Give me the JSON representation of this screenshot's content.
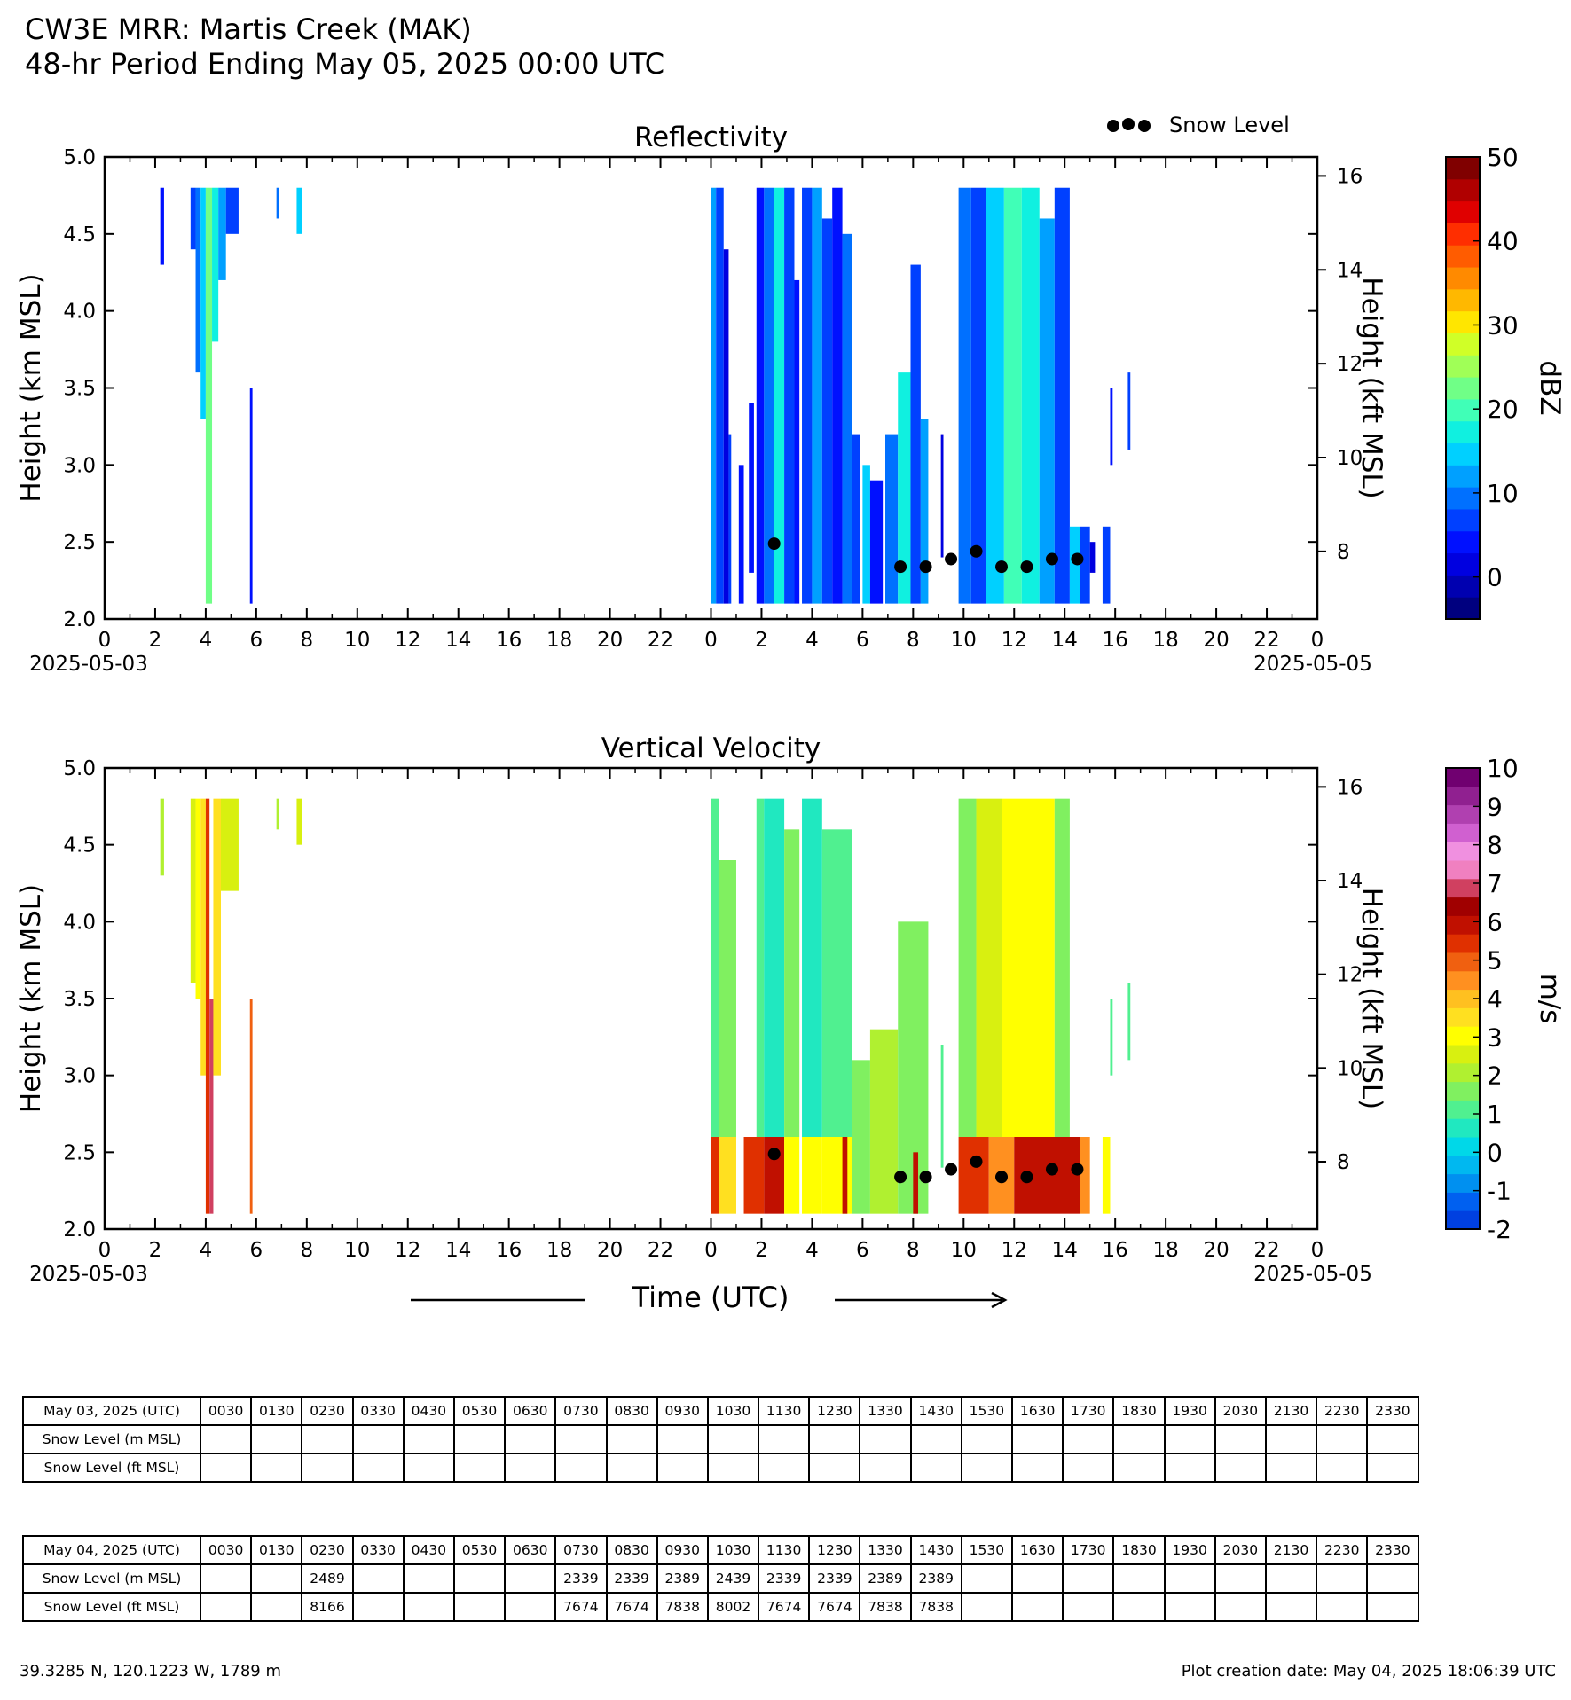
{
  "header": {
    "title_line1": "CW3E MRR: Martis Creek (MAK)",
    "title_line2": "48-hr Period Ending May 05, 2025 00:00 UTC"
  },
  "legend": {
    "snow_level_label": "Snow Level"
  },
  "xlabel": "Time (UTC)",
  "chart_data": [
    {
      "type": "heatmap",
      "title": "Reflectivity",
      "ylabel": "Height (km MSL)",
      "ylabel_right": "Height (kft MSL)",
      "ylim": [
        2.0,
        5.0
      ],
      "yticks": [
        "2.0",
        "2.5",
        "3.0",
        "3.5",
        "4.0",
        "4.5",
        "5.0"
      ],
      "ylim_right_kft": [
        6.56,
        16.4
      ],
      "yticks_right": [
        "8",
        "10",
        "12",
        "14",
        "16"
      ],
      "xlim_hours": [
        0,
        48
      ],
      "xticks": [
        "0",
        "2",
        "4",
        "6",
        "8",
        "10",
        "12",
        "14",
        "16",
        "18",
        "20",
        "22",
        "0",
        "2",
        "4",
        "6",
        "8",
        "10",
        "12",
        "14",
        "16",
        "18",
        "20",
        "22",
        "0"
      ],
      "xdates": {
        "start": "2025-05-03",
        "end": "2025-05-05"
      },
      "colorbar": {
        "label": "dBZ",
        "range": [
          -5,
          50
        ],
        "ticks": [
          "0",
          "10",
          "20",
          "30",
          "40",
          "50"
        ],
        "colors": [
          "#00007f",
          "#0000b0",
          "#0000e0",
          "#0010ff",
          "#0040ff",
          "#0070ff",
          "#00a0ff",
          "#00d0ff",
          "#10f0e0",
          "#40ffb7",
          "#70ff87",
          "#a0ff57",
          "#d0ff27",
          "#ffe600",
          "#ffb800",
          "#ff8a00",
          "#ff5c00",
          "#ff2e00",
          "#e00000",
          "#b00000",
          "#800000"
        ]
      },
      "snow_level_points": [
        {
          "x": 26.5,
          "y": 2.489
        },
        {
          "x": 31.5,
          "y": 2.339
        },
        {
          "x": 32.5,
          "y": 2.339
        },
        {
          "x": 33.5,
          "y": 2.389
        },
        {
          "x": 34.5,
          "y": 2.439
        },
        {
          "x": 35.5,
          "y": 2.339
        },
        {
          "x": 36.5,
          "y": 2.339
        },
        {
          "x": 37.5,
          "y": 2.389
        },
        {
          "x": 38.5,
          "y": 2.389
        }
      ],
      "echo_columns": [
        {
          "x0": 2.2,
          "x1": 2.35,
          "ybot": 4.3,
          "ytop": 4.8,
          "v": 4
        },
        {
          "x0": 3.4,
          "x1": 3.6,
          "ybot": 4.4,
          "ytop": 4.8,
          "v": 6
        },
        {
          "x0": 3.6,
          "x1": 3.8,
          "ybot": 3.6,
          "ytop": 4.8,
          "v": 10
        },
        {
          "x0": 3.8,
          "x1": 4.0,
          "ybot": 3.3,
          "ytop": 4.8,
          "v": 14
        },
        {
          "x0": 4.0,
          "x1": 4.25,
          "ybot": 2.1,
          "ytop": 4.8,
          "v": 22
        },
        {
          "x0": 4.25,
          "x1": 4.5,
          "ybot": 3.8,
          "ytop": 4.8,
          "v": 16
        },
        {
          "x0": 4.5,
          "x1": 4.8,
          "ybot": 4.2,
          "ytop": 4.8,
          "v": 12
        },
        {
          "x0": 4.8,
          "x1": 5.3,
          "ybot": 4.5,
          "ytop": 4.8,
          "v": 8
        },
        {
          "x0": 5.75,
          "x1": 5.85,
          "ybot": 2.1,
          "ytop": 3.5,
          "v": 4
        },
        {
          "x0": 6.8,
          "x1": 6.9,
          "ybot": 4.6,
          "ytop": 4.8,
          "v": 10
        },
        {
          "x0": 7.6,
          "x1": 7.8,
          "ybot": 4.5,
          "ytop": 4.8,
          "v": 14
        },
        {
          "x0": 24.0,
          "x1": 24.2,
          "ybot": 2.1,
          "ytop": 4.8,
          "v": 12
        },
        {
          "x0": 24.2,
          "x1": 24.5,
          "ybot": 2.1,
          "ytop": 4.8,
          "v": 6
        },
        {
          "x0": 24.5,
          "x1": 24.7,
          "ybot": 2.1,
          "ytop": 4.4,
          "v": 2
        },
        {
          "x0": 24.7,
          "x1": 24.8,
          "ybot": 2.1,
          "ytop": 3.2,
          "v": 8
        },
        {
          "x0": 25.1,
          "x1": 25.3,
          "ybot": 2.1,
          "ytop": 3.0,
          "v": 5
        },
        {
          "x0": 25.5,
          "x1": 25.7,
          "ybot": 2.3,
          "ytop": 3.4,
          "v": 3
        },
        {
          "x0": 25.8,
          "x1": 26.1,
          "ybot": 2.1,
          "ytop": 4.8,
          "v": 5
        },
        {
          "x0": 26.1,
          "x1": 26.5,
          "ybot": 2.1,
          "ytop": 4.8,
          "v": 10
        },
        {
          "x0": 26.5,
          "x1": 26.9,
          "ybot": 2.1,
          "ytop": 4.8,
          "v": 18
        },
        {
          "x0": 26.9,
          "x1": 27.3,
          "ybot": 2.1,
          "ytop": 4.8,
          "v": 7
        },
        {
          "x0": 27.3,
          "x1": 27.5,
          "ybot": 2.1,
          "ytop": 4.2,
          "v": 4
        },
        {
          "x0": 27.6,
          "x1": 28.0,
          "ybot": 2.1,
          "ytop": 4.8,
          "v": 6
        },
        {
          "x0": 28.0,
          "x1": 28.4,
          "ybot": 2.1,
          "ytop": 4.8,
          "v": 12
        },
        {
          "x0": 28.4,
          "x1": 28.8,
          "ybot": 2.1,
          "ytop": 4.6,
          "v": 8
        },
        {
          "x0": 28.8,
          "x1": 29.2,
          "ybot": 2.1,
          "ytop": 4.8,
          "v": 4
        },
        {
          "x0": 29.2,
          "x1": 29.6,
          "ybot": 2.1,
          "ytop": 4.5,
          "v": 10
        },
        {
          "x0": 29.6,
          "x1": 29.9,
          "ybot": 2.1,
          "ytop": 3.2,
          "v": 6
        },
        {
          "x0": 30.0,
          "x1": 30.3,
          "ybot": 2.1,
          "ytop": 3.0,
          "v": 14
        },
        {
          "x0": 30.3,
          "x1": 30.8,
          "ybot": 2.1,
          "ytop": 2.9,
          "v": 4
        },
        {
          "x0": 30.9,
          "x1": 31.4,
          "ybot": 2.1,
          "ytop": 3.2,
          "v": 10
        },
        {
          "x0": 31.4,
          "x1": 31.9,
          "ybot": 2.1,
          "ytop": 3.6,
          "v": 16
        },
        {
          "x0": 31.9,
          "x1": 32.3,
          "ybot": 2.1,
          "ytop": 4.3,
          "v": 8
        },
        {
          "x0": 32.3,
          "x1": 32.6,
          "ybot": 2.1,
          "ytop": 3.3,
          "v": 12
        },
        {
          "x0": 33.1,
          "x1": 33.2,
          "ybot": 2.4,
          "ytop": 3.2,
          "v": 2
        },
        {
          "x0": 33.8,
          "x1": 34.3,
          "ybot": 2.1,
          "ytop": 4.8,
          "v": 10
        },
        {
          "x0": 34.3,
          "x1": 34.9,
          "ybot": 2.1,
          "ytop": 4.8,
          "v": 6
        },
        {
          "x0": 34.9,
          "x1": 35.6,
          "ybot": 2.1,
          "ytop": 4.8,
          "v": 14
        },
        {
          "x0": 35.6,
          "x1": 36.3,
          "ybot": 2.1,
          "ytop": 4.8,
          "v": 20
        },
        {
          "x0": 36.3,
          "x1": 37.0,
          "ybot": 2.1,
          "ytop": 4.8,
          "v": 16
        },
        {
          "x0": 37.0,
          "x1": 37.6,
          "ybot": 2.1,
          "ytop": 4.6,
          "v": 12
        },
        {
          "x0": 37.6,
          "x1": 38.2,
          "ybot": 2.1,
          "ytop": 4.8,
          "v": 8
        },
        {
          "x0": 38.2,
          "x1": 38.6,
          "ybot": 2.1,
          "ytop": 2.6,
          "v": 14
        },
        {
          "x0": 38.6,
          "x1": 39.0,
          "ybot": 2.1,
          "ytop": 2.6,
          "v": 6
        },
        {
          "x0": 39.0,
          "x1": 39.2,
          "ybot": 2.3,
          "ytop": 2.5,
          "v": 2
        },
        {
          "x0": 39.5,
          "x1": 39.8,
          "ybot": 2.1,
          "ytop": 2.6,
          "v": 6
        },
        {
          "x0": 39.8,
          "x1": 39.9,
          "ybot": 3.0,
          "ytop": 3.5,
          "v": 4
        },
        {
          "x0": 40.5,
          "x1": 40.6,
          "ybot": 3.1,
          "ytop": 3.6,
          "v": 6
        }
      ]
    },
    {
      "type": "heatmap",
      "title": "Vertical Velocity",
      "ylabel": "Height (km MSL)",
      "ylabel_right": "Height (kft MSL)",
      "ylim": [
        2.0,
        5.0
      ],
      "yticks": [
        "2.0",
        "2.5",
        "3.0",
        "3.5",
        "4.0",
        "4.5",
        "5.0"
      ],
      "ylim_right_kft": [
        6.56,
        16.4
      ],
      "yticks_right": [
        "8",
        "10",
        "12",
        "14",
        "16"
      ],
      "xlim_hours": [
        0,
        48
      ],
      "xticks": [
        "0",
        "2",
        "4",
        "6",
        "8",
        "10",
        "12",
        "14",
        "16",
        "18",
        "20",
        "22",
        "0",
        "2",
        "4",
        "6",
        "8",
        "10",
        "12",
        "14",
        "16",
        "18",
        "20",
        "22",
        "0"
      ],
      "xdates": {
        "start": "2025-05-03",
        "end": "2025-05-05"
      },
      "colorbar": {
        "label": "m/s",
        "range": [
          -2,
          10
        ],
        "ticks": [
          "-2",
          "-1",
          "0",
          "1",
          "2",
          "3",
          "4",
          "5",
          "6",
          "7",
          "8",
          "9",
          "10"
        ],
        "colors": [
          "#0040e0",
          "#0060f0",
          "#0090f0",
          "#00b8f0",
          "#00d8e8",
          "#20e8c0",
          "#50f090",
          "#80f060",
          "#b0f030",
          "#d8f010",
          "#ffff00",
          "#ffe020",
          "#ffc020",
          "#ff9020",
          "#f06010",
          "#e03000",
          "#c01000",
          "#a00000",
          "#d04060",
          "#f080c0",
          "#f090e0",
          "#d060d0",
          "#b040b0",
          "#902090",
          "#700070"
        ]
      },
      "snow_level_points": [
        {
          "x": 26.5,
          "y": 2.489
        },
        {
          "x": 31.5,
          "y": 2.339
        },
        {
          "x": 32.5,
          "y": 2.339
        },
        {
          "x": 33.5,
          "y": 2.389
        },
        {
          "x": 34.5,
          "y": 2.439
        },
        {
          "x": 35.5,
          "y": 2.339
        },
        {
          "x": 36.5,
          "y": 2.339
        },
        {
          "x": 37.5,
          "y": 2.389
        },
        {
          "x": 38.5,
          "y": 2.389
        }
      ],
      "echo_columns": [
        {
          "x0": 2.2,
          "x1": 2.35,
          "ybot": 4.3,
          "ytop": 4.8,
          "v": 2
        },
        {
          "x0": 3.4,
          "x1": 3.6,
          "ybot": 3.6,
          "ytop": 4.8,
          "v": 2.5
        },
        {
          "x0": 3.6,
          "x1": 3.8,
          "ybot": 3.5,
          "ytop": 4.8,
          "v": 3
        },
        {
          "x0": 3.8,
          "x1": 4.0,
          "ybot": 3.0,
          "ytop": 4.8,
          "v": 3.5
        },
        {
          "x0": 4.0,
          "x1": 4.15,
          "ybot": 2.1,
          "ytop": 4.8,
          "v": 5.5
        },
        {
          "x0": 4.15,
          "x1": 4.3,
          "ybot": 2.1,
          "ytop": 3.5,
          "v": 7
        },
        {
          "x0": 4.3,
          "x1": 4.6,
          "ybot": 3.0,
          "ytop": 4.8,
          "v": 3.5
        },
        {
          "x0": 4.6,
          "x1": 5.3,
          "ybot": 4.2,
          "ytop": 4.8,
          "v": 2.5
        },
        {
          "x0": 5.75,
          "x1": 5.85,
          "ybot": 2.1,
          "ytop": 3.5,
          "v": 5
        },
        {
          "x0": 6.8,
          "x1": 6.9,
          "ybot": 4.6,
          "ytop": 4.8,
          "v": 2
        },
        {
          "x0": 7.6,
          "x1": 7.8,
          "ybot": 4.5,
          "ytop": 4.8,
          "v": 2.5
        },
        {
          "x0": 24.0,
          "x1": 24.3,
          "ybot": 2.6,
          "ytop": 4.8,
          "v": 1
        },
        {
          "x0": 24.3,
          "x1": 25.0,
          "ybot": 2.6,
          "ytop": 4.4,
          "v": 1.5
        },
        {
          "x0": 24.0,
          "x1": 24.3,
          "ybot": 2.1,
          "ytop": 2.6,
          "v": 5.5
        },
        {
          "x0": 24.3,
          "x1": 25.0,
          "ybot": 2.1,
          "ytop": 2.6,
          "v": 3.5
        },
        {
          "x0": 25.3,
          "x1": 26.1,
          "ybot": 2.1,
          "ytop": 2.6,
          "v": 5.5
        },
        {
          "x0": 25.8,
          "x1": 26.1,
          "ybot": 2.6,
          "ytop": 4.8,
          "v": 1
        },
        {
          "x0": 26.1,
          "x1": 26.9,
          "ybot": 2.6,
          "ytop": 4.8,
          "v": 0.5
        },
        {
          "x0": 26.1,
          "x1": 26.9,
          "ybot": 2.1,
          "ytop": 2.6,
          "v": 6
        },
        {
          "x0": 26.9,
          "x1": 27.5,
          "ybot": 2.6,
          "ytop": 4.6,
          "v": 1.5
        },
        {
          "x0": 26.9,
          "x1": 27.5,
          "ybot": 2.1,
          "ytop": 2.6,
          "v": 3
        },
        {
          "x0": 27.6,
          "x1": 28.4,
          "ybot": 2.6,
          "ytop": 4.8,
          "v": 0.5
        },
        {
          "x0": 27.6,
          "x1": 28.4,
          "ybot": 2.1,
          "ytop": 2.6,
          "v": 3
        },
        {
          "x0": 28.4,
          "x1": 29.6,
          "ybot": 2.6,
          "ytop": 4.6,
          "v": 1
        },
        {
          "x0": 28.4,
          "x1": 29.6,
          "ybot": 2.1,
          "ytop": 2.6,
          "v": 3
        },
        {
          "x0": 29.2,
          "x1": 29.4,
          "ybot": 2.1,
          "ytop": 2.6,
          "v": 6
        },
        {
          "x0": 29.6,
          "x1": 30.3,
          "ybot": 2.1,
          "ytop": 3.1,
          "v": 1.5
        },
        {
          "x0": 30.3,
          "x1": 31.4,
          "ybot": 2.1,
          "ytop": 3.3,
          "v": 2
        },
        {
          "x0": 31.4,
          "x1": 32.6,
          "ybot": 2.1,
          "ytop": 4.0,
          "v": 1.5
        },
        {
          "x0": 32.0,
          "x1": 32.2,
          "ybot": 2.1,
          "ytop": 2.5,
          "v": 6
        },
        {
          "x0": 33.1,
          "x1": 33.2,
          "ybot": 2.4,
          "ytop": 3.2,
          "v": 1
        },
        {
          "x0": 33.8,
          "x1": 34.5,
          "ybot": 2.6,
          "ytop": 4.8,
          "v": 1.5
        },
        {
          "x0": 34.5,
          "x1": 35.5,
          "ybot": 2.6,
          "ytop": 4.8,
          "v": 2.5
        },
        {
          "x0": 35.5,
          "x1": 37.6,
          "ybot": 2.6,
          "ytop": 4.8,
          "v": 3
        },
        {
          "x0": 37.6,
          "x1": 38.2,
          "ybot": 2.6,
          "ytop": 4.8,
          "v": 1.5
        },
        {
          "x0": 33.8,
          "x1": 35.0,
          "ybot": 2.1,
          "ytop": 2.6,
          "v": 5.5
        },
        {
          "x0": 35.0,
          "x1": 36.0,
          "ybot": 2.1,
          "ytop": 2.6,
          "v": 4.5
        },
        {
          "x0": 36.0,
          "x1": 38.6,
          "ybot": 2.1,
          "ytop": 2.6,
          "v": 6
        },
        {
          "x0": 38.6,
          "x1": 39.0,
          "ybot": 2.1,
          "ytop": 2.6,
          "v": 4.5
        },
        {
          "x0": 39.5,
          "x1": 39.8,
          "ybot": 2.1,
          "ytop": 2.6,
          "v": 3
        },
        {
          "x0": 39.8,
          "x1": 39.9,
          "ybot": 3.0,
          "ytop": 3.5,
          "v": 1
        },
        {
          "x0": 40.5,
          "x1": 40.6,
          "ybot": 3.1,
          "ytop": 3.6,
          "v": 1
        }
      ]
    }
  ],
  "tables": [
    {
      "header": "May 03, 2025 (UTC)",
      "times": [
        "0030",
        "0130",
        "0230",
        "0330",
        "0430",
        "0530",
        "0630",
        "0730",
        "0830",
        "0930",
        "1030",
        "1130",
        "1230",
        "1330",
        "1430",
        "1530",
        "1630",
        "1730",
        "1830",
        "1930",
        "2030",
        "2130",
        "2230",
        "2330"
      ],
      "rows": [
        {
          "label": "Snow Level (m MSL)",
          "values": [
            "",
            "",
            "",
            "",
            "",
            "",
            "",
            "",
            "",
            "",
            "",
            "",
            "",
            "",
            "",
            "",
            "",
            "",
            "",
            "",
            "",
            "",
            "",
            ""
          ]
        },
        {
          "label": "Snow Level (ft MSL)",
          "values": [
            "",
            "",
            "",
            "",
            "",
            "",
            "",
            "",
            "",
            "",
            "",
            "",
            "",
            "",
            "",
            "",
            "",
            "",
            "",
            "",
            "",
            "",
            "",
            ""
          ]
        }
      ]
    },
    {
      "header": "May 04, 2025 (UTC)",
      "times": [
        "0030",
        "0130",
        "0230",
        "0330",
        "0430",
        "0530",
        "0630",
        "0730",
        "0830",
        "0930",
        "1030",
        "1130",
        "1230",
        "1330",
        "1430",
        "1530",
        "1630",
        "1730",
        "1830",
        "1930",
        "2030",
        "2130",
        "2230",
        "2330"
      ],
      "rows": [
        {
          "label": "Snow Level (m MSL)",
          "values": [
            "",
            "",
            "2489",
            "",
            "",
            "",
            "",
            "2339",
            "2339",
            "2389",
            "2439",
            "2339",
            "2339",
            "2389",
            "2389",
            "",
            "",
            "",
            "",
            "",
            "",
            "",
            "",
            ""
          ]
        },
        {
          "label": "Snow Level (ft MSL)",
          "values": [
            "",
            "",
            "8166",
            "",
            "",
            "",
            "",
            "7674",
            "7674",
            "7838",
            "8002",
            "7674",
            "7674",
            "7838",
            "7838",
            "",
            "",
            "",
            "",
            "",
            "",
            "",
            "",
            ""
          ]
        }
      ]
    }
  ],
  "footer": {
    "location": "39.3285 N, 120.1223 W, 1789 m",
    "creation": "Plot creation date: May 04, 2025 18:06:39 UTC"
  }
}
